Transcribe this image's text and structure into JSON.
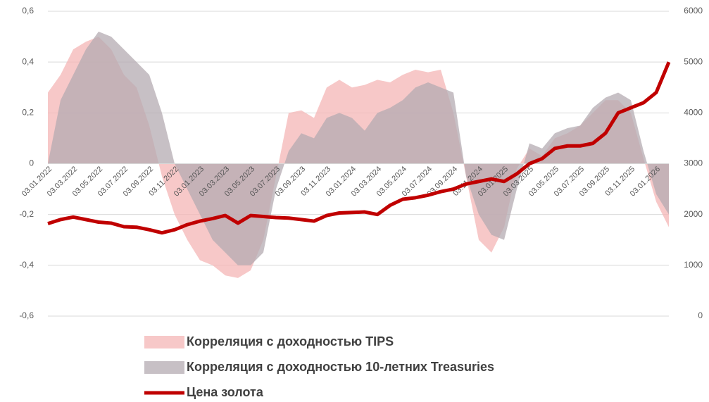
{
  "chart_data": {
    "type": "area_line",
    "categories": [
      "03.01.2022",
      null,
      "03.03.2022",
      null,
      "03.05.2022",
      null,
      "03.07.2022",
      null,
      "03.09.2022",
      null,
      "03.11.2022",
      null,
      "03.01.2023",
      null,
      "03.03.2023",
      null,
      "03.05.2023",
      null,
      "03.07.2023",
      null,
      "03.09.2023",
      null,
      "03.11.2023",
      null,
      "03.01.2024",
      null,
      "03.03.2024",
      null,
      "03.05.2024",
      null,
      "03.07.2024",
      null,
      "03.09.2024",
      null,
      "03.11.2024",
      null,
      "03.01.2025",
      null,
      "03.03.2025",
      null,
      "03.05.2025",
      null,
      "03.07.2025",
      null,
      "03.09.2025",
      null,
      "03.11.2025",
      null,
      "03.01.2026",
      null
    ],
    "series": [
      {
        "name": "Корреляция с доходностью TIPS",
        "color": "#f4b6b6",
        "kind": "area",
        "axis": "y",
        "values": [
          0.28,
          0.35,
          0.45,
          0.48,
          0.5,
          0.45,
          0.35,
          0.3,
          0.15,
          -0.05,
          -0.2,
          -0.3,
          -0.38,
          -0.4,
          -0.44,
          -0.45,
          -0.42,
          -0.3,
          -0.05,
          0.2,
          0.21,
          0.18,
          0.3,
          0.33,
          0.3,
          0.31,
          0.33,
          0.32,
          0.35,
          0.37,
          0.36,
          0.37,
          0.2,
          -0.05,
          -0.3,
          -0.35,
          -0.25,
          -0.02,
          0.06,
          0.03,
          0.1,
          0.12,
          0.15,
          0.2,
          0.25,
          0.25,
          0.2,
          0.02,
          -0.15,
          -0.25
        ]
      },
      {
        "name": "Корреляция с доходностью 10-летних Treasuries",
        "color": "#b4abb2",
        "kind": "area",
        "axis": "y",
        "values": [
          0.0,
          0.25,
          0.35,
          0.45,
          0.52,
          0.5,
          0.45,
          0.4,
          0.35,
          0.2,
          0.0,
          -0.1,
          -0.2,
          -0.3,
          -0.35,
          -0.4,
          -0.4,
          -0.35,
          -0.1,
          0.05,
          0.12,
          0.1,
          0.18,
          0.2,
          0.18,
          0.13,
          0.2,
          0.22,
          0.25,
          0.3,
          0.32,
          0.3,
          0.28,
          -0.05,
          -0.2,
          -0.28,
          -0.3,
          -0.1,
          0.08,
          0.06,
          0.12,
          0.14,
          0.15,
          0.22,
          0.26,
          0.28,
          0.25,
          0.05,
          -0.12,
          -0.2
        ]
      },
      {
        "name": "Цена золота",
        "color": "#c00000",
        "kind": "line",
        "axis": "y2",
        "values": [
          1820,
          1900,
          1950,
          1900,
          1850,
          1830,
          1760,
          1750,
          1700,
          1640,
          1700,
          1800,
          1870,
          1920,
          1980,
          1830,
          1980,
          1960,
          1940,
          1930,
          1900,
          1870,
          1980,
          2030,
          2040,
          2050,
          2000,
          2180,
          2300,
          2330,
          2380,
          2450,
          2500,
          2600,
          2650,
          2700,
          2650,
          2800,
          3000,
          3100,
          3300,
          3350,
          3350,
          3400,
          3600,
          4000,
          4100,
          4200,
          4400,
          5000
        ]
      }
    ],
    "ylim": [
      -0.6,
      0.6
    ],
    "yticks": [
      {
        "value": -0.6,
        "label": "-0,6"
      },
      {
        "value": -0.4,
        "label": "-0,4"
      },
      {
        "value": -0.2,
        "label": "-0,2"
      },
      0,
      {
        "value": 0.2,
        "label": "0,2"
      },
      {
        "value": 0.4,
        "label": "0,4"
      },
      {
        "value": 0.6,
        "label": "0,6"
      }
    ],
    "y2lim": [
      0,
      6000
    ],
    "y2ticks": [
      0,
      1000,
      2000,
      3000,
      4000,
      5000,
      6000
    ],
    "grid": true,
    "legend": "bottom"
  }
}
